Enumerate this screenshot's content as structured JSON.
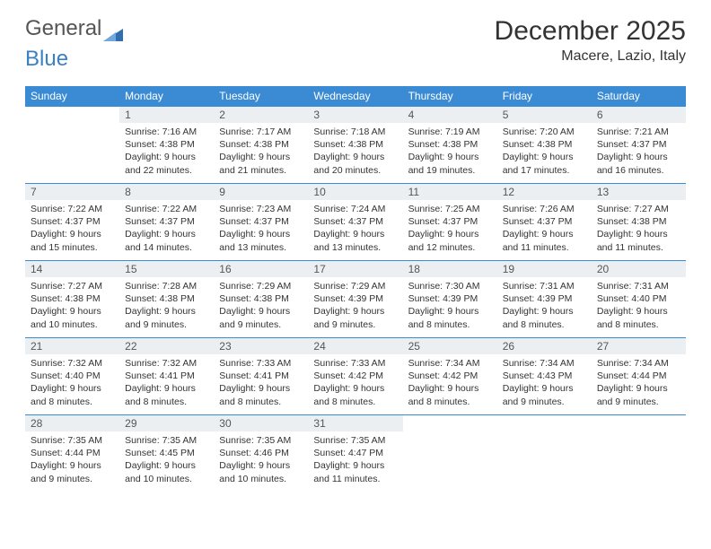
{
  "logo": {
    "text1": "General",
    "text2": "Blue"
  },
  "header": {
    "title": "December 2025",
    "location": "Macere, Lazio, Italy"
  },
  "colors": {
    "header_bg": "#3b8bd4",
    "header_text": "#ffffff",
    "daynum_bg": "#eceff2",
    "border": "#3b8bd4",
    "text": "#333333",
    "background": "#ffffff"
  },
  "days_of_week": [
    "Sunday",
    "Monday",
    "Tuesday",
    "Wednesday",
    "Thursday",
    "Friday",
    "Saturday"
  ],
  "weeks": [
    [
      null,
      {
        "n": "1",
        "sr": "7:16 AM",
        "ss": "4:38 PM",
        "dl": "9 hours and 22 minutes."
      },
      {
        "n": "2",
        "sr": "7:17 AM",
        "ss": "4:38 PM",
        "dl": "9 hours and 21 minutes."
      },
      {
        "n": "3",
        "sr": "7:18 AM",
        "ss": "4:38 PM",
        "dl": "9 hours and 20 minutes."
      },
      {
        "n": "4",
        "sr": "7:19 AM",
        "ss": "4:38 PM",
        "dl": "9 hours and 19 minutes."
      },
      {
        "n": "5",
        "sr": "7:20 AM",
        "ss": "4:38 PM",
        "dl": "9 hours and 17 minutes."
      },
      {
        "n": "6",
        "sr": "7:21 AM",
        "ss": "4:37 PM",
        "dl": "9 hours and 16 minutes."
      }
    ],
    [
      {
        "n": "7",
        "sr": "7:22 AM",
        "ss": "4:37 PM",
        "dl": "9 hours and 15 minutes."
      },
      {
        "n": "8",
        "sr": "7:22 AM",
        "ss": "4:37 PM",
        "dl": "9 hours and 14 minutes."
      },
      {
        "n": "9",
        "sr": "7:23 AM",
        "ss": "4:37 PM",
        "dl": "9 hours and 13 minutes."
      },
      {
        "n": "10",
        "sr": "7:24 AM",
        "ss": "4:37 PM",
        "dl": "9 hours and 13 minutes."
      },
      {
        "n": "11",
        "sr": "7:25 AM",
        "ss": "4:37 PM",
        "dl": "9 hours and 12 minutes."
      },
      {
        "n": "12",
        "sr": "7:26 AM",
        "ss": "4:37 PM",
        "dl": "9 hours and 11 minutes."
      },
      {
        "n": "13",
        "sr": "7:27 AM",
        "ss": "4:38 PM",
        "dl": "9 hours and 11 minutes."
      }
    ],
    [
      {
        "n": "14",
        "sr": "7:27 AM",
        "ss": "4:38 PM",
        "dl": "9 hours and 10 minutes."
      },
      {
        "n": "15",
        "sr": "7:28 AM",
        "ss": "4:38 PM",
        "dl": "9 hours and 9 minutes."
      },
      {
        "n": "16",
        "sr": "7:29 AM",
        "ss": "4:38 PM",
        "dl": "9 hours and 9 minutes."
      },
      {
        "n": "17",
        "sr": "7:29 AM",
        "ss": "4:39 PM",
        "dl": "9 hours and 9 minutes."
      },
      {
        "n": "18",
        "sr": "7:30 AM",
        "ss": "4:39 PM",
        "dl": "9 hours and 8 minutes."
      },
      {
        "n": "19",
        "sr": "7:31 AM",
        "ss": "4:39 PM",
        "dl": "9 hours and 8 minutes."
      },
      {
        "n": "20",
        "sr": "7:31 AM",
        "ss": "4:40 PM",
        "dl": "9 hours and 8 minutes."
      }
    ],
    [
      {
        "n": "21",
        "sr": "7:32 AM",
        "ss": "4:40 PM",
        "dl": "9 hours and 8 minutes."
      },
      {
        "n": "22",
        "sr": "7:32 AM",
        "ss": "4:41 PM",
        "dl": "9 hours and 8 minutes."
      },
      {
        "n": "23",
        "sr": "7:33 AM",
        "ss": "4:41 PM",
        "dl": "9 hours and 8 minutes."
      },
      {
        "n": "24",
        "sr": "7:33 AM",
        "ss": "4:42 PM",
        "dl": "9 hours and 8 minutes."
      },
      {
        "n": "25",
        "sr": "7:34 AM",
        "ss": "4:42 PM",
        "dl": "9 hours and 8 minutes."
      },
      {
        "n": "26",
        "sr": "7:34 AM",
        "ss": "4:43 PM",
        "dl": "9 hours and 9 minutes."
      },
      {
        "n": "27",
        "sr": "7:34 AM",
        "ss": "4:44 PM",
        "dl": "9 hours and 9 minutes."
      }
    ],
    [
      {
        "n": "28",
        "sr": "7:35 AM",
        "ss": "4:44 PM",
        "dl": "9 hours and 9 minutes."
      },
      {
        "n": "29",
        "sr": "7:35 AM",
        "ss": "4:45 PM",
        "dl": "9 hours and 10 minutes."
      },
      {
        "n": "30",
        "sr": "7:35 AM",
        "ss": "4:46 PM",
        "dl": "9 hours and 10 minutes."
      },
      {
        "n": "31",
        "sr": "7:35 AM",
        "ss": "4:47 PM",
        "dl": "9 hours and 11 minutes."
      },
      null,
      null,
      null
    ]
  ],
  "labels": {
    "sunrise": "Sunrise:",
    "sunset": "Sunset:",
    "daylight": "Daylight:"
  }
}
